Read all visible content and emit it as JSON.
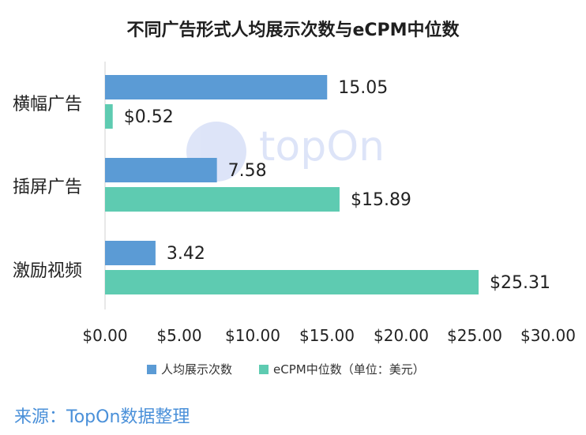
{
  "chart_data": {
    "type": "bar",
    "orientation": "horizontal",
    "title": "不同广告形式人均展示次数与eCPM中位数",
    "categories": [
      "横幅广告",
      "插屏广告",
      "激励视频"
    ],
    "series": [
      {
        "name": "人均展示次数",
        "values": [
          15.05,
          7.58,
          3.42
        ],
        "labels": [
          "15.05",
          "7.58",
          "3.42"
        ],
        "color": "#5b9bd5"
      },
      {
        "name": "eCPM中位数（单位：美元）",
        "values": [
          0.52,
          15.89,
          25.31
        ],
        "labels": [
          "$0.52",
          "$15.89",
          "$25.31"
        ],
        "color": "#5ecbb1"
      }
    ],
    "xlim": [
      0,
      30
    ],
    "xticks": [
      "$0.00",
      "$5.00",
      "$10.00",
      "$15.00",
      "$20.00",
      "$25.00",
      "$30.00"
    ],
    "xtick_values": [
      0,
      5,
      10,
      15,
      20,
      25,
      30
    ],
    "grid": false,
    "legend_position": "bottom"
  },
  "watermark": "topOn",
  "source": "来源：TopOn数据整理"
}
